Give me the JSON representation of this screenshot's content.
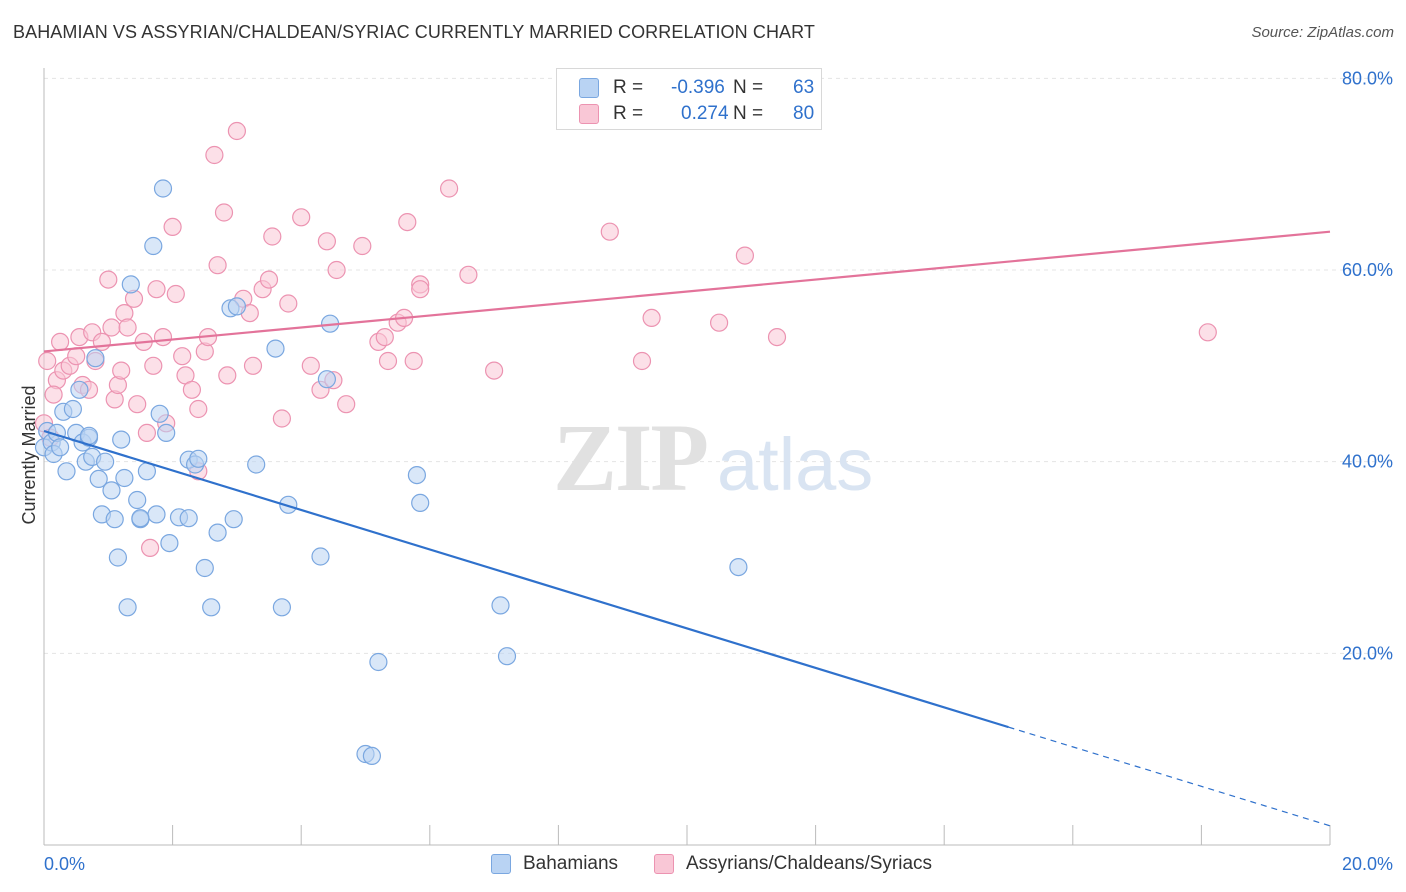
{
  "header": {
    "title": "BAHAMIAN VS ASSYRIAN/CHALDEAN/SYRIAC CURRENTLY MARRIED CORRELATION CHART",
    "source": "Source: ZipAtlas.com"
  },
  "watermark": {
    "part1": "ZIP",
    "part2": "atlas"
  },
  "legend": {
    "rows": [
      {
        "r_label": "R =",
        "r_value": "-0.396",
        "n_label": "N =",
        "n_value": "63",
        "fill": "#b9d3f3",
        "stroke": "#7aa7e0"
      },
      {
        "r_label": "R =",
        "r_value": "0.274",
        "n_label": "N =",
        "n_value": "80",
        "fill": "#f9c7d6",
        "stroke": "#ec93b1"
      }
    ]
  },
  "bottom_legend": {
    "items": [
      {
        "label": "Bahamians",
        "fill": "#b9d3f3",
        "stroke": "#7aa7e0"
      },
      {
        "label": "Assyrians/Chaldeans/Syriacs",
        "fill": "#f9c7d6",
        "stroke": "#ec93b1"
      }
    ]
  },
  "chart_data": {
    "type": "scatter",
    "title": "BAHAMIAN VS ASSYRIAN/CHALDEAN/SYRIAC CURRENTLY MARRIED CORRELATION CHART",
    "xlabel": "",
    "ylabel": "Currently Married",
    "xlim": [
      0,
      20
    ],
    "ylim": [
      0,
      80
    ],
    "x_ticks": [
      "0.0%",
      "20.0%"
    ],
    "y_ticks": [
      "20.0%",
      "40.0%",
      "60.0%",
      "80.0%"
    ],
    "y_tick_values": [
      20,
      40,
      60,
      80
    ],
    "grid": true,
    "colors": {
      "blue": "#2f71cc",
      "pink": "#e3739a",
      "axis_label": "#2f71cc"
    },
    "series": [
      {
        "name": "Bahamians",
        "color": "#2f71cc",
        "fill": "#b9d3f3",
        "points": [
          [
            0.0,
            41.5
          ],
          [
            0.05,
            43.2
          ],
          [
            0.12,
            42.0
          ],
          [
            0.15,
            40.8
          ],
          [
            0.2,
            43.0
          ],
          [
            0.3,
            45.2
          ],
          [
            0.35,
            39.0
          ],
          [
            0.45,
            45.5
          ],
          [
            0.5,
            43.0
          ],
          [
            0.6,
            42.0
          ],
          [
            0.65,
            40.0
          ],
          [
            0.7,
            42.5
          ],
          [
            0.75,
            40.5
          ],
          [
            0.8,
            50.8
          ],
          [
            0.85,
            38.2
          ],
          [
            0.9,
            34.5
          ],
          [
            1.1,
            34.0
          ],
          [
            1.15,
            30.0
          ],
          [
            1.25,
            38.3
          ],
          [
            1.3,
            24.8
          ],
          [
            1.45,
            36.0
          ],
          [
            1.5,
            34.0
          ],
          [
            1.6,
            39.0
          ],
          [
            1.7,
            62.5
          ],
          [
            1.75,
            34.5
          ],
          [
            1.8,
            45.0
          ],
          [
            1.85,
            68.5
          ],
          [
            1.9,
            43.0
          ],
          [
            1.95,
            31.5
          ],
          [
            2.1,
            34.2
          ],
          [
            2.25,
            40.2
          ],
          [
            2.35,
            39.7
          ],
          [
            2.4,
            40.3
          ],
          [
            2.5,
            28.9
          ],
          [
            2.6,
            24.8
          ],
          [
            2.7,
            32.6
          ],
          [
            2.9,
            56.0
          ],
          [
            2.95,
            34.0
          ],
          [
            3.3,
            39.7
          ],
          [
            3.7,
            24.8
          ],
          [
            3.8,
            35.5
          ],
          [
            4.3,
            30.1
          ],
          [
            4.4,
            48.6
          ],
          [
            4.45,
            54.4
          ],
          [
            5.0,
            9.5
          ],
          [
            5.1,
            9.3
          ],
          [
            5.2,
            19.1
          ],
          [
            5.8,
            38.6
          ],
          [
            5.85,
            35.7
          ],
          [
            7.1,
            25.0
          ],
          [
            7.2,
            19.7
          ],
          [
            10.8,
            29.0
          ],
          [
            1.35,
            58.5
          ],
          [
            3.6,
            51.8
          ],
          [
            0.55,
            47.5
          ],
          [
            0.25,
            41.5
          ],
          [
            1.05,
            37.0
          ],
          [
            0.95,
            40.0
          ],
          [
            2.25,
            34.1
          ],
          [
            3.0,
            56.2
          ],
          [
            1.5,
            34.1
          ],
          [
            0.7,
            42.7
          ],
          [
            1.2,
            42.3
          ]
        ]
      },
      {
        "name": "Assyrians/Chaldeans/Syriacs",
        "color": "#e3739a",
        "fill": "#f9c7d6",
        "points": [
          [
            0.0,
            44.0
          ],
          [
            0.05,
            50.5
          ],
          [
            0.1,
            42.5
          ],
          [
            0.2,
            48.5
          ],
          [
            0.25,
            52.5
          ],
          [
            0.3,
            49.5
          ],
          [
            0.4,
            50.0
          ],
          [
            0.5,
            51.0
          ],
          [
            0.55,
            53.0
          ],
          [
            0.6,
            48.0
          ],
          [
            0.7,
            47.5
          ],
          [
            0.75,
            53.5
          ],
          [
            0.8,
            50.5
          ],
          [
            0.9,
            52.5
          ],
          [
            1.0,
            59.0
          ],
          [
            1.05,
            54.0
          ],
          [
            1.1,
            46.5
          ],
          [
            1.15,
            48.0
          ],
          [
            1.2,
            49.5
          ],
          [
            1.25,
            55.5
          ],
          [
            1.3,
            54.0
          ],
          [
            1.4,
            57.0
          ],
          [
            1.45,
            46.0
          ],
          [
            1.55,
            52.5
          ],
          [
            1.6,
            43.0
          ],
          [
            1.7,
            50.0
          ],
          [
            1.75,
            58.0
          ],
          [
            1.85,
            53.0
          ],
          [
            1.9,
            44.0
          ],
          [
            2.0,
            64.5
          ],
          [
            2.05,
            57.5
          ],
          [
            2.15,
            51.0
          ],
          [
            2.2,
            49.0
          ],
          [
            2.3,
            47.5
          ],
          [
            2.4,
            45.5
          ],
          [
            2.5,
            51.5
          ],
          [
            2.55,
            53.0
          ],
          [
            2.65,
            72.0
          ],
          [
            2.7,
            60.5
          ],
          [
            2.8,
            66.0
          ],
          [
            2.85,
            49.0
          ],
          [
            3.0,
            74.5
          ],
          [
            3.1,
            57.0
          ],
          [
            3.2,
            55.5
          ],
          [
            3.25,
            50.0
          ],
          [
            3.4,
            58.0
          ],
          [
            3.5,
            59.0
          ],
          [
            3.55,
            63.5
          ],
          [
            3.7,
            44.5
          ],
          [
            3.8,
            56.5
          ],
          [
            4.0,
            65.5
          ],
          [
            4.15,
            50.0
          ],
          [
            4.3,
            47.5
          ],
          [
            4.4,
            63.0
          ],
          [
            4.5,
            48.5
          ],
          [
            4.55,
            60.0
          ],
          [
            4.7,
            46.0
          ],
          [
            4.95,
            62.5
          ],
          [
            5.2,
            52.5
          ],
          [
            5.3,
            53.0
          ],
          [
            5.35,
            50.5
          ],
          [
            5.5,
            54.5
          ],
          [
            5.6,
            55.0
          ],
          [
            5.65,
            65.0
          ],
          [
            5.75,
            50.5
          ],
          [
            5.85,
            58.5
          ],
          [
            6.3,
            68.5
          ],
          [
            6.6,
            59.5
          ],
          [
            7.0,
            49.5
          ],
          [
            8.8,
            64.0
          ],
          [
            9.3,
            50.5
          ],
          [
            9.45,
            55.0
          ],
          [
            10.5,
            54.5
          ],
          [
            10.9,
            61.5
          ],
          [
            11.4,
            53.0
          ],
          [
            18.1,
            53.5
          ],
          [
            1.65,
            31.0
          ],
          [
            2.4,
            39.0
          ],
          [
            0.15,
            47.0
          ],
          [
            5.85,
            58.0
          ]
        ]
      }
    ],
    "trendlines": [
      {
        "series": "Bahamians",
        "x_start": 0.0,
        "y_start": 43.2,
        "x_end": 20.0,
        "y_end": 2.0,
        "solid_until_x": 15.0
      },
      {
        "series": "Assyrians/Chaldeans/Syriacs",
        "x_start": 0.0,
        "y_start": 51.5,
        "x_end": 20.0,
        "y_end": 64.0
      }
    ]
  }
}
